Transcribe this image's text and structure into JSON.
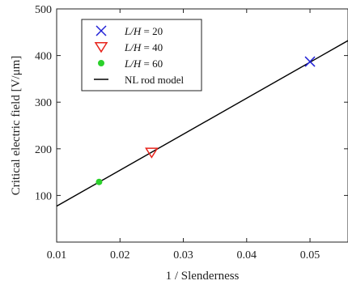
{
  "chart_data": {
    "type": "scatter",
    "xlabel": "1 / Slenderness",
    "ylabel": "Critical electric field [V/μm]",
    "xlim": [
      0.01,
      0.056
    ],
    "ylim": [
      0,
      500
    ],
    "xticks": [
      "0.01",
      "0.02",
      "0.03",
      "0.04",
      "0.05"
    ],
    "xtick_values": [
      0.01,
      0.02,
      0.03,
      0.04,
      0.05
    ],
    "yticks": [
      "100",
      "200",
      "300",
      "400",
      "500"
    ],
    "ytick_values": [
      100,
      200,
      300,
      400,
      500
    ],
    "grid": false,
    "legend_position": "top-left",
    "series": [
      {
        "name": "L/H = 20",
        "name_var": "L/H",
        "name_rest": " = 20",
        "marker": "x",
        "color": "#1f1fd6",
        "x": [
          0.05
        ],
        "y": [
          387
        ]
      },
      {
        "name": "L/H = 40",
        "name_var": "L/H",
        "name_rest": " = 40",
        "marker": "triangle-down",
        "color": "#e8231b",
        "x": [
          0.025
        ],
        "y": [
          192
        ]
      },
      {
        "name": "L/H = 60",
        "name_var": "L/H",
        "name_rest": " = 60",
        "marker": "dot",
        "color": "#2bd12b",
        "x": [
          0.0167
        ],
        "y": [
          129
        ]
      },
      {
        "name": "NL rod model",
        "marker": "line",
        "color": "#000000",
        "x": [
          0.01,
          0.056
        ],
        "y": [
          77,
          432
        ]
      }
    ]
  }
}
